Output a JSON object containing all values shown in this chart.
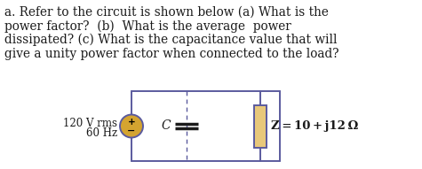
{
  "text_lines": [
    "a. Refer to the circuit is shown below (a) What is the",
    "power factor?  (b)  What is the average  power",
    "dissipated? (c) What is the capacitance value that will",
    "give a unity power factor when connected to the load?"
  ],
  "source_label_line1": "120 V rms",
  "source_label_line2": "60 Hz",
  "capacitor_label": "C",
  "impedance_label": "Z = 10 + j12 Ω",
  "bg_color": "#ffffff",
  "text_color": "#1a1a1a",
  "circuit_color": "#5b5b9e",
  "source_fill": "#d4a430",
  "resistor_fill": "#e8c87a",
  "font_size_text": 9.8,
  "font_size_circuit": 8.5,
  "font_size_imp_label": 9.5
}
